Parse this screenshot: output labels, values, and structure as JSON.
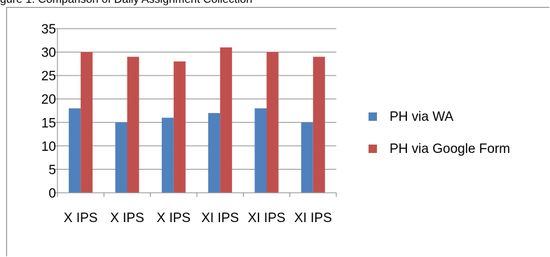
{
  "page": {
    "top_text": "gure 1. Comparison of Daily Assignment Collection"
  },
  "chart_data": {
    "type": "bar",
    "categories": [
      "X IPS",
      "X IPS",
      "X IPS",
      "XI IPS",
      "XI IPS",
      "XI IPS"
    ],
    "series": [
      {
        "name": "PH via WA",
        "values": [
          18,
          15,
          16,
          17,
          18,
          15
        ],
        "color": "#4f81bd"
      },
      {
        "name": "PH via Google Form",
        "values": [
          30,
          29,
          28,
          31,
          30,
          29
        ],
        "color": "#c0504d"
      }
    ],
    "ylim": [
      0,
      35
    ],
    "yticks": [
      0,
      5,
      10,
      15,
      20,
      25,
      30,
      35
    ],
    "grid": true,
    "legend_position": "right"
  }
}
